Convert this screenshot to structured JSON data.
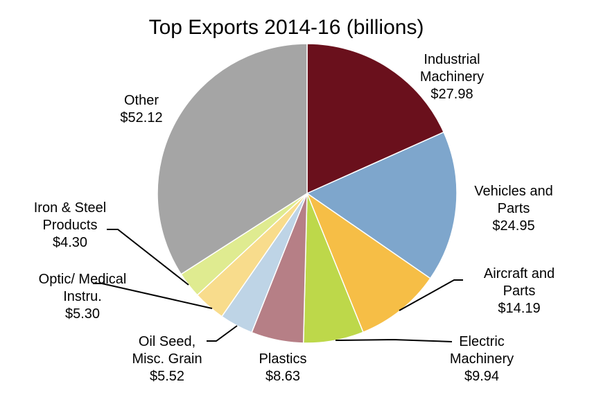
{
  "chart_data": {
    "type": "pie",
    "title": "Top Exports 2014-16 (billions)",
    "start_angle_deg": 0,
    "direction": "clockwise",
    "slices": [
      {
        "key": "industrial",
        "label_lines": [
          "Industrial",
          "Machinery"
        ],
        "value_label": "$27.98",
        "value": 27.98,
        "color": "#6a101c"
      },
      {
        "key": "vehicles",
        "label_lines": [
          "Vehicles and",
          "Parts"
        ],
        "value_label": "$24.95",
        "value": 24.95,
        "color": "#7ea6cc"
      },
      {
        "key": "aircraft",
        "label_lines": [
          "Aircraft and",
          "Parts"
        ],
        "value_label": "$14.19",
        "value": 14.19,
        "color": "#f6be46"
      },
      {
        "key": "electric",
        "label_lines": [
          "Electric",
          "Machinery"
        ],
        "value_label": "$9.94",
        "value": 9.94,
        "color": "#bdd84a"
      },
      {
        "key": "plastics",
        "label_lines": [
          "Plastics"
        ],
        "value_label": "$8.63",
        "value": 8.63,
        "color": "#b67f86"
      },
      {
        "key": "oilseed",
        "label_lines": [
          "Oil Seed,",
          "Misc. Grain"
        ],
        "value_label": "$5.52",
        "value": 5.52,
        "color": "#bed4e6"
      },
      {
        "key": "optic",
        "label_lines": [
          "Optic/ Medical",
          "Instru."
        ],
        "value_label": "$5.30",
        "value": 5.3,
        "color": "#f8dc8c"
      },
      {
        "key": "iron",
        "label_lines": [
          "Iron & Steel",
          "Products"
        ],
        "value_label": "$4.30",
        "value": 4.3,
        "color": "#dfeb90"
      },
      {
        "key": "other",
        "label_lines": [
          "Other"
        ],
        "value_label": "$52.12",
        "value": 52.12,
        "color": "#a5a5a5"
      }
    ]
  }
}
